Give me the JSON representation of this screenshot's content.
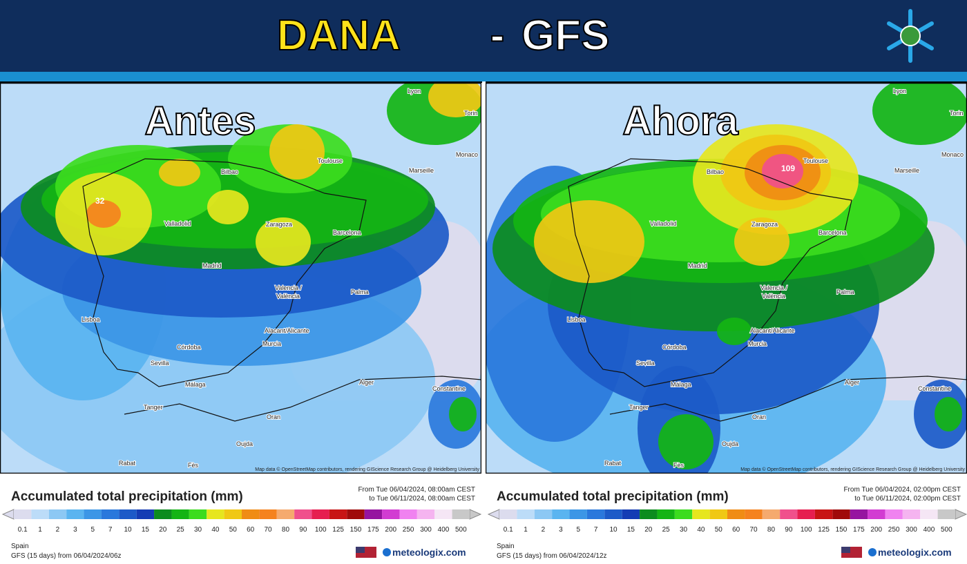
{
  "header": {
    "title_part1": "DANA",
    "separator": "-",
    "title_part2": "GFS"
  },
  "legend": {
    "title": "Accumulated total precipitation (mm)",
    "scale": [
      0.1,
      1,
      2,
      3,
      5,
      7,
      10,
      15,
      20,
      25,
      30,
      40,
      50,
      60,
      70,
      80,
      90,
      100,
      125,
      150,
      175,
      200,
      250,
      300,
      400,
      500
    ],
    "colors": [
      "#dcdcee",
      "#bcdcf8",
      "#8cc8f4",
      "#5ab4f0",
      "#3c96e6",
      "#2a78dc",
      "#1c5ac8",
      "#143cb4",
      "#0c8c1e",
      "#14b414",
      "#3cdc1e",
      "#e6e61e",
      "#f0c814",
      "#f08c14",
      "#f5821e",
      "#f5aa6e",
      "#f0508c",
      "#e61e50",
      "#c81414",
      "#a00a0a",
      "#9614a0",
      "#d23cd2",
      "#f082f0",
      "#f5b4f0",
      "#f5e6f5",
      "#c8c8c8"
    ],
    "region": "Spain",
    "brand": "meteologix.com",
    "attribution": "Map data © OpenStreetMap contributors, rendering GIScience Research Group @ Heidelberg University"
  },
  "map": {
    "cities": [
      "Lyon",
      "Torin",
      "Monaco",
      "Toulouse",
      "Marseille",
      "Bilbao",
      "Valladolid",
      "Zaragoza",
      "Barcelona",
      "Madrid",
      "Palma",
      "Valencia /",
      "València",
      "Lisboa",
      "Alacant/Alicante",
      "Murcia",
      "Córdoba",
      "Sevilla",
      "Málaga",
      "Alger",
      "Constantine",
      "Tanger",
      "Oran",
      "Oujda",
      "Rabat",
      "Fès"
    ]
  },
  "panels": [
    {
      "label": "Antes",
      "peak": "32",
      "from": "From Tue 06/04/2024, 08:00am CEST",
      "to": "to Tue 06/11/2024, 08:00am CEST",
      "run": "GFS (15 days) from 06/04/2024/06z"
    },
    {
      "label": "Ahora",
      "peak": "109",
      "from": "From Tue 06/04/2024, 02:00pm CEST",
      "to": "to Tue 06/11/2024, 02:00pm CEST",
      "run": "GFS (15 days) from 06/04/2024/12z"
    }
  ]
}
